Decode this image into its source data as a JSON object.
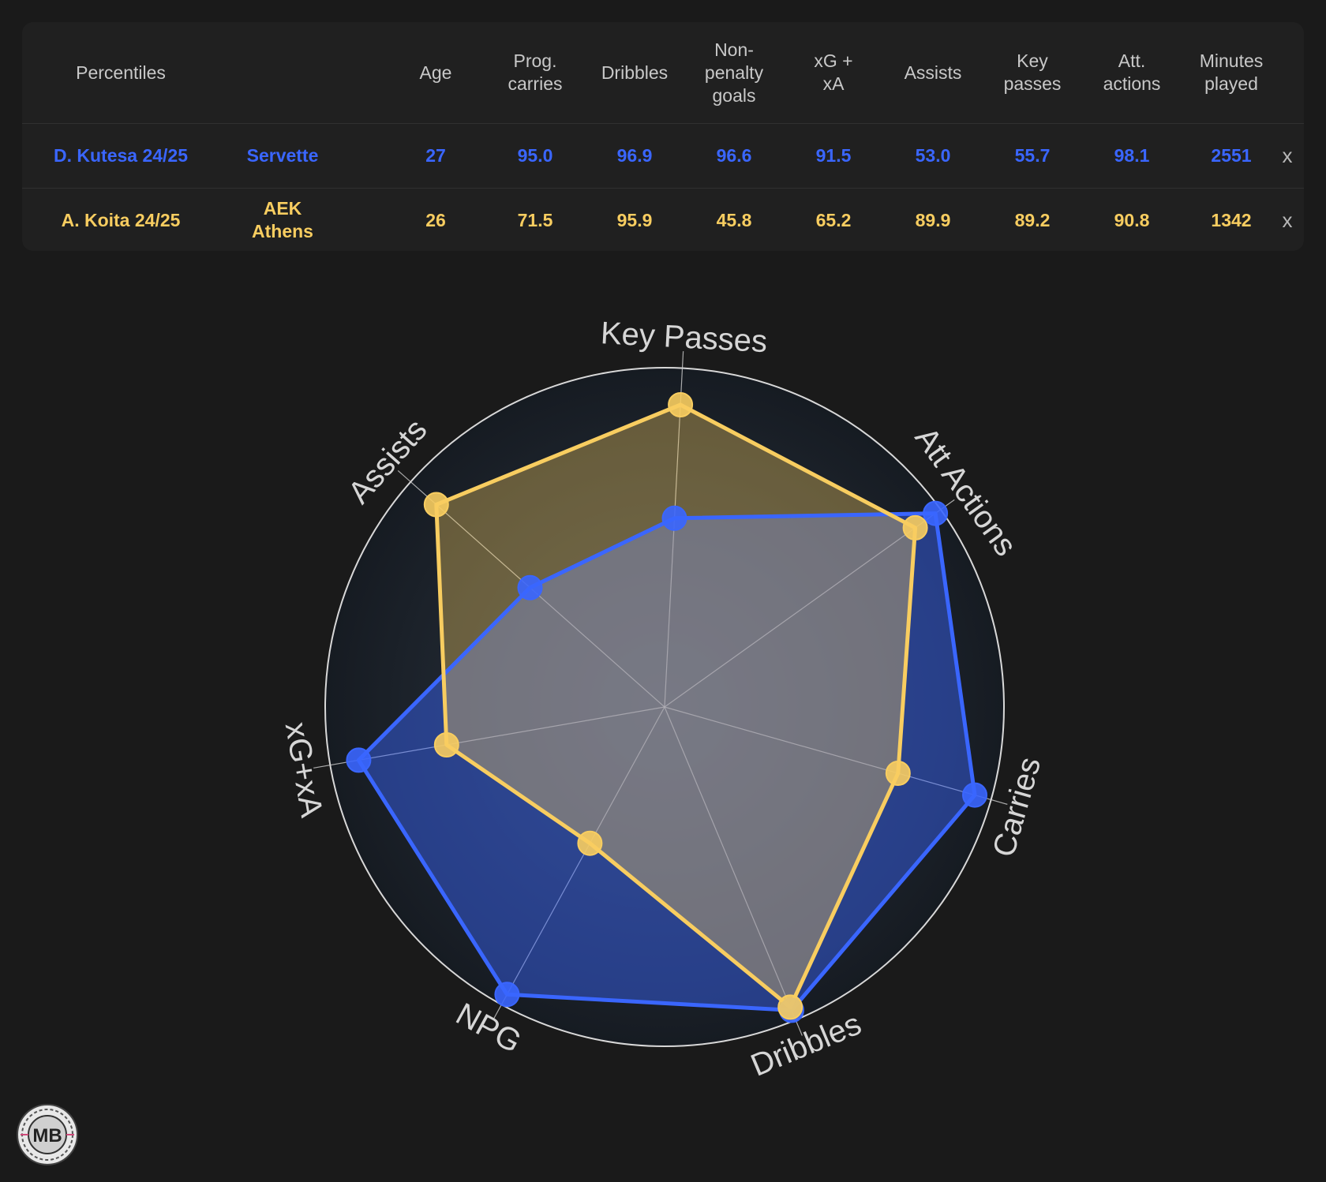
{
  "table": {
    "headers": [
      "Percentiles",
      "",
      "Age",
      "Prog.\ncarries",
      "Dribbles",
      "Non-\npenalty\ngoals",
      "xG +\nxA",
      "Assists",
      "Key\npasses",
      "Att.\nactions",
      "Minutes\nplayed"
    ],
    "rows": [
      {
        "player": "D. Kutesa 24/25",
        "team": "Servette",
        "age": "27",
        "prog_carries": "95.0",
        "dribbles": "96.9",
        "npg": "96.6",
        "xg_xa": "91.5",
        "assists": "53.0",
        "key_passes": "55.7",
        "att_actions": "98.1",
        "minutes": "2551",
        "remove": "x",
        "color": "#3a66ff"
      },
      {
        "player": "A. Koita 24/25",
        "team": "AEK\nAthens",
        "age": "26",
        "prog_carries": "71.5",
        "dribbles": "95.9",
        "npg": "45.8",
        "xg_xa": "65.2",
        "assists": "89.9",
        "key_passes": "89.2",
        "att_actions": "90.8",
        "minutes": "1342",
        "remove": "x",
        "color": "#f8cd60"
      }
    ]
  },
  "chart_data": {
    "type": "radar",
    "axes": [
      "Key Passes",
      "Att Actions",
      "Carries",
      "Dribbles",
      "NPG",
      "xG+xA",
      "Assists"
    ],
    "range": [
      0,
      100
    ],
    "series": [
      {
        "name": "D. Kutesa 24/25",
        "color": "#3a66ff",
        "values": [
          55.7,
          98.1,
          95.0,
          96.9,
          96.6,
          91.5,
          53.0
        ]
      },
      {
        "name": "A. Koita 24/25",
        "color": "#f8cd60",
        "values": [
          89.2,
          90.8,
          71.5,
          95.9,
          45.8,
          65.2,
          89.9
        ]
      }
    ]
  },
  "logo": {
    "text": "MB"
  }
}
